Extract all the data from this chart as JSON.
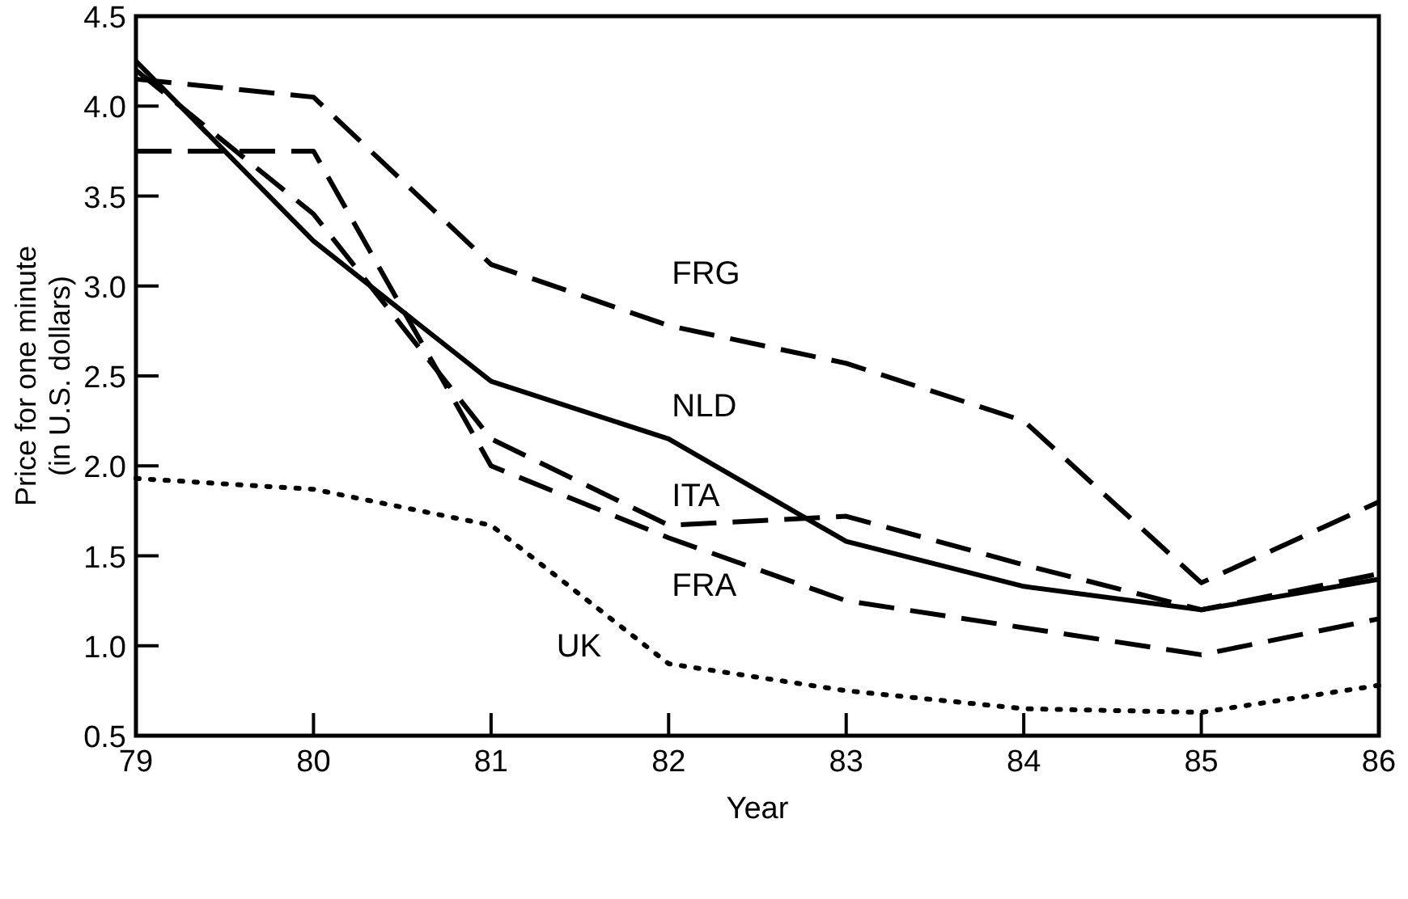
{
  "chart_data": {
    "type": "line",
    "xlabel": "Year",
    "ylabel": "Price for one minute\n(in U.S. dollars)",
    "x": [
      79,
      80,
      81,
      82,
      83,
      84,
      85,
      86
    ],
    "xlim": [
      79,
      86
    ],
    "xticks": [
      79,
      80,
      81,
      82,
      83,
      84,
      85,
      86
    ],
    "ylim": [
      0.5,
      4.5
    ],
    "yticks": [
      {
        "value": 0.5,
        "label": "0.5"
      },
      {
        "value": 1,
        "label": "1.0"
      },
      {
        "value": 1.5,
        "label": "1.5"
      },
      {
        "value": 2,
        "label": "2.0"
      },
      {
        "value": 2.5,
        "label": "2.5"
      },
      {
        "value": 3,
        "label": "3.0"
      },
      {
        "value": 3.5,
        "label": "3.5"
      },
      {
        "value": 4,
        "label": "4.0"
      },
      {
        "value": 4.5,
        "label": "4.5"
      }
    ],
    "grid": false,
    "marker": "none",
    "series": [
      {
        "name": "FRG",
        "color": "#000000",
        "line_style": "dashed",
        "values": [
          4.15,
          4.05,
          3.12,
          2.78,
          2.57,
          2.25,
          1.35,
          1.8
        ]
      },
      {
        "name": "NLD",
        "color": "#000000",
        "line_style": "solid",
        "values": [
          4.25,
          3.25,
          2.47,
          2.15,
          1.58,
          1.33,
          1.2,
          1.37
        ]
      },
      {
        "name": "ITA",
        "color": "#000000",
        "line_style": "dashed",
        "values": [
          4.2,
          3.4,
          2.15,
          1.67,
          1.72,
          1.45,
          1.2,
          1.4
        ]
      },
      {
        "name": "FRA",
        "color": "#000000",
        "line_style": "dashed",
        "values": [
          3.75,
          3.75,
          2.0,
          1.6,
          1.25,
          1.1,
          0.95,
          1.15
        ]
      },
      {
        "name": "UK",
        "color": "#000000",
        "line_style": "dotted",
        "values": [
          1.93,
          1.87,
          1.67,
          0.9,
          0.75,
          0.65,
          0.63,
          0.78
        ]
      }
    ]
  }
}
